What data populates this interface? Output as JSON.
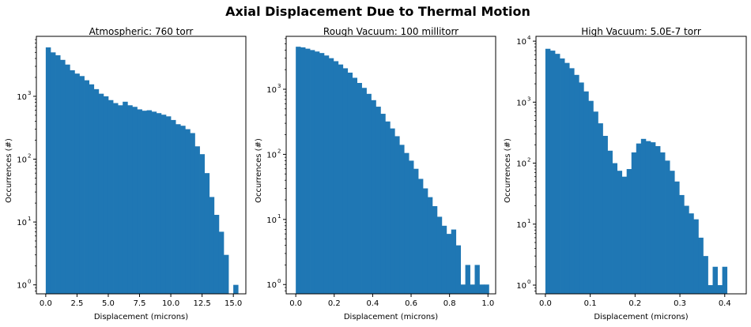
{
  "figure": {
    "title": "Axial Displacement Due to Thermal Motion",
    "bar_color": "#1f77b4"
  },
  "chart_data": [
    {
      "type": "bar",
      "title": "Atmospheric: 760 torr",
      "xlabel": "Displacement (microns)",
      "ylabel": "Occurrences (#)",
      "yscale": "log",
      "xlim": [
        -0.75,
        16.0
      ],
      "ylim": [
        0.72,
        9000
      ],
      "xticks": [
        0,
        2.5,
        5,
        7.5,
        10,
        12.5,
        15
      ],
      "xtick_labels": [
        "0.0",
        "2.5",
        "5.0",
        "7.5",
        "10.0",
        "12.5",
        "15.0"
      ],
      "yticks": [
        1,
        10,
        100,
        1000
      ],
      "ytick_labels": [
        "10",
        "10",
        "10",
        "10"
      ],
      "ytick_exponents": [
        "0",
        "1",
        "2",
        "3"
      ],
      "bin_start": 0,
      "bin_width": 0.3845,
      "values": [
        6000,
        5000,
        4500,
        3800,
        3200,
        2600,
        2300,
        2100,
        1800,
        1550,
        1300,
        1100,
        1000,
        870,
        780,
        720,
        820,
        720,
        680,
        620,
        590,
        600,
        570,
        540,
        510,
        480,
        420,
        360,
        340,
        300,
        260,
        160,
        120,
        60,
        25,
        13,
        7,
        3,
        0,
        1
      ]
    },
    {
      "type": "bar",
      "title": "Rough Vacuum: 100 millitorr",
      "xlabel": "Displacement (microns)",
      "ylabel": "Occurrences (#)",
      "yscale": "log",
      "xlim": [
        -0.05,
        1.04
      ],
      "ylim": [
        0.72,
        6500
      ],
      "xticks": [
        0,
        0.2,
        0.4,
        0.6,
        0.8,
        1.0
      ],
      "xtick_labels": [
        "0.0",
        "0.2",
        "0.4",
        "0.6",
        "0.8",
        "1.0"
      ],
      "yticks": [
        1,
        10,
        100,
        1000
      ],
      "ytick_labels": [
        "10",
        "10",
        "10",
        "10"
      ],
      "ytick_exponents": [
        "0",
        "1",
        "2",
        "3"
      ],
      "bin_start": 0,
      "bin_width": 0.0245,
      "values": [
        4500,
        4400,
        4200,
        4000,
        3800,
        3600,
        3300,
        3000,
        2700,
        2400,
        2100,
        1800,
        1500,
        1250,
        1050,
        850,
        680,
        540,
        420,
        320,
        250,
        190,
        140,
        105,
        80,
        60,
        42,
        30,
        22,
        16,
        11,
        8,
        6,
        7,
        4,
        1,
        2,
        1,
        2,
        1,
        1
      ]
    },
    {
      "type": "bar",
      "title": "High Vacuum: 5.0E-7 torr",
      "xlabel": "Displacement (microns)",
      "ylabel": "Occurrences (#)",
      "yscale": "log",
      "xlim": [
        -0.021,
        0.448
      ],
      "ylim": [
        0.72,
        12000
      ],
      "xticks": [
        0,
        0.1,
        0.2,
        0.3,
        0.4
      ],
      "xtick_labels": [
        "0.0",
        "0.1",
        "0.2",
        "0.3",
        "0.4"
      ],
      "yticks": [
        1,
        10,
        100,
        1000,
        10000
      ],
      "ytick_labels": [
        "10",
        "10",
        "10",
        "10",
        "10"
      ],
      "ytick_exponents": [
        "0",
        "1",
        "2",
        "3",
        "4"
      ],
      "bin_start": 0,
      "bin_width": 0.01066,
      "values": [
        7500,
        7000,
        6200,
        5200,
        4400,
        3600,
        2800,
        2100,
        1500,
        1050,
        700,
        450,
        280,
        160,
        100,
        75,
        60,
        80,
        150,
        210,
        250,
        230,
        220,
        190,
        150,
        110,
        75,
        50,
        30,
        20,
        15,
        12,
        6,
        3,
        1,
        2,
        1,
        2
      ]
    }
  ]
}
